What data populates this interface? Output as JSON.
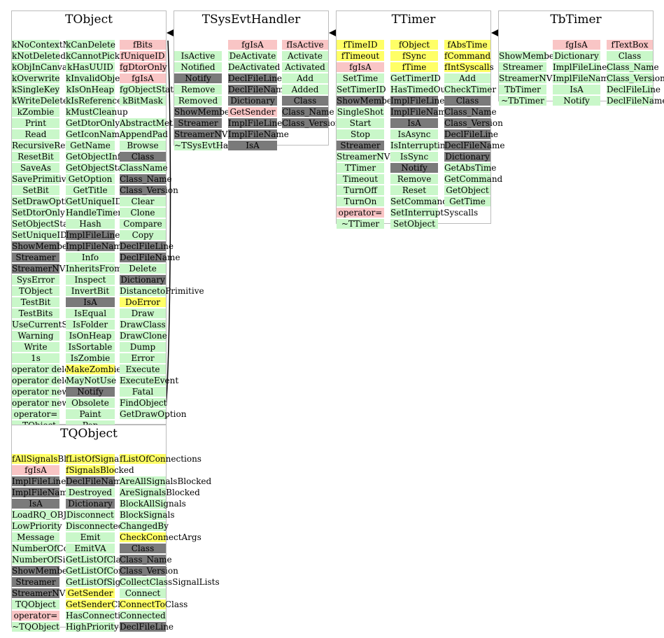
{
  "classes": [
    {
      "key": "TObject",
      "name": "TObject",
      "columns": [
        [
          [
            "kNoContextMenu",
            "m"
          ],
          [
            "kNotDeleted",
            "m"
          ],
          [
            "kObjInCanvas",
            "m"
          ],
          [
            "kOverwrite",
            "m"
          ],
          [
            "kSingleKey",
            "m"
          ],
          [
            "kWriteDelete",
            "m"
          ],
          [
            "kZombie",
            "m"
          ],
          [
            "Print",
            "m"
          ],
          [
            "Read",
            "m"
          ],
          [
            "RecursiveRemove",
            "m"
          ],
          [
            "ResetBit",
            "m"
          ],
          [
            "SaveAs",
            "m"
          ],
          [
            "SavePrimitive",
            "m"
          ],
          [
            "SetBit",
            "m"
          ],
          [
            "SetDrawOption",
            "m"
          ],
          [
            "SetDtorOnly",
            "m"
          ],
          [
            "SetObjectStat",
            "m"
          ],
          [
            "SetUniqueID",
            "m"
          ],
          [
            "ShowMembers",
            "d"
          ],
          [
            "Streamer",
            "d"
          ],
          [
            "StreamerNVirtual",
            "d"
          ],
          [
            "SysError",
            "m"
          ],
          [
            "TObject",
            "m"
          ],
          [
            "TestBit",
            "m"
          ],
          [
            "TestBits",
            "m"
          ],
          [
            "UseCurrentStyle",
            "m"
          ],
          [
            "Warning",
            "m"
          ],
          [
            "Write",
            "m"
          ],
          [
            "1s",
            "m"
          ],
          [
            "operator delete",
            "m"
          ],
          [
            "operator delete[]",
            "m"
          ],
          [
            "operator new",
            "m"
          ],
          [
            "operator new[]",
            "m"
          ],
          [
            "operator=",
            "m"
          ],
          [
            "~TObject",
            "m"
          ]
        ],
        [
          [
            "kCanDelete",
            "m"
          ],
          [
            "kCannotPick",
            "m"
          ],
          [
            "kHasUUID",
            "m"
          ],
          [
            "kInvalidObject",
            "m"
          ],
          [
            "kIsOnHeap",
            "m"
          ],
          [
            "kIsReferenced",
            "m"
          ],
          [
            "kMustCleanup",
            "m"
          ],
          [
            "GetDtorOnly",
            "m"
          ],
          [
            "GetIconName",
            "m"
          ],
          [
            "GetName",
            "m"
          ],
          [
            "GetObjectInfo",
            "m"
          ],
          [
            "GetObjectStat",
            "m"
          ],
          [
            "GetOption",
            "m"
          ],
          [
            "GetTitle",
            "m"
          ],
          [
            "GetUniqueID",
            "m"
          ],
          [
            "HandleTimer",
            "m"
          ],
          [
            "Hash",
            "m"
          ],
          [
            "ImplFileLine",
            "d"
          ],
          [
            "ImplFileName",
            "d"
          ],
          [
            "Info",
            "m"
          ],
          [
            "InheritsFrom",
            "m"
          ],
          [
            "Inspect",
            "m"
          ],
          [
            "InvertBit",
            "m"
          ],
          [
            "IsA",
            "d"
          ],
          [
            "IsEqual",
            "m"
          ],
          [
            "IsFolder",
            "m"
          ],
          [
            "IsOnHeap",
            "m"
          ],
          [
            "IsSortable",
            "m"
          ],
          [
            "IsZombie",
            "m"
          ],
          [
            "MakeZombie",
            "y"
          ],
          [
            "MayNotUse",
            "m"
          ],
          [
            "Notify",
            "d"
          ],
          [
            "Obsolete",
            "m"
          ],
          [
            "Paint",
            "m"
          ],
          [
            "Pop",
            "m"
          ]
        ],
        [
          [
            "fBits",
            "p"
          ],
          [
            "fUniqueID",
            "p"
          ],
          [
            "fgDtorOnly",
            "p"
          ],
          [
            "fgIsA",
            "p"
          ],
          [
            "fgObjectStat",
            "m"
          ],
          [
            "kBitMask",
            "m"
          ],
          [
            "",
            ""
          ],
          [
            "AbstractMethod",
            "m"
          ],
          [
            "AppendPad",
            "m"
          ],
          [
            "Browse",
            "m"
          ],
          [
            "Class",
            "d"
          ],
          [
            "ClassName",
            "m"
          ],
          [
            "Class_Name",
            "d"
          ],
          [
            "Class_Version",
            "d"
          ],
          [
            "Clear",
            "m"
          ],
          [
            "Clone",
            "m"
          ],
          [
            "Compare",
            "m"
          ],
          [
            "Copy",
            "m"
          ],
          [
            "DeclFileLine",
            "d"
          ],
          [
            "DeclFileName",
            "d"
          ],
          [
            "Delete",
            "m"
          ],
          [
            "Dictionary",
            "d"
          ],
          [
            "DistancetoPrimitive",
            "m"
          ],
          [
            "DoError",
            "y"
          ],
          [
            "Draw",
            "m"
          ],
          [
            "DrawClass",
            "m"
          ],
          [
            "DrawClone",
            "m"
          ],
          [
            "Dump",
            "m"
          ],
          [
            "Error",
            "m"
          ],
          [
            "Execute",
            "m"
          ],
          [
            "ExecuteEvent",
            "m"
          ],
          [
            "Fatal",
            "m"
          ],
          [
            "FindObject",
            "m"
          ],
          [
            "GetDrawOption",
            "m"
          ]
        ]
      ]
    },
    {
      "key": "TSysEvtHandler",
      "name": "TSysEvtHandler",
      "columns": [
        [
          [
            "",
            ""
          ],
          [
            "IsActive",
            "m"
          ],
          [
            "Notified",
            "m"
          ],
          [
            "Notify",
            "d"
          ],
          [
            "Remove",
            "m"
          ],
          [
            "Removed",
            "m"
          ],
          [
            "ShowMembers",
            "d"
          ],
          [
            "Streamer",
            "d"
          ],
          [
            "StreamerNVirtual",
            "d"
          ],
          [
            "~TSysEvtHandler",
            "m"
          ]
        ],
        [
          [
            "fgIsA",
            "p"
          ],
          [
            "DeActivate",
            "m"
          ],
          [
            "DeActivated",
            "m"
          ],
          [
            "DeclFileLine",
            "d"
          ],
          [
            "DeclFileName",
            "d"
          ],
          [
            "Dictionary",
            "d"
          ],
          [
            "GetSender",
            "p"
          ],
          [
            "ImplFileLine",
            "d"
          ],
          [
            "ImplFileName",
            "d"
          ],
          [
            "IsA",
            "d"
          ]
        ],
        [
          [
            "fIsActive",
            "p"
          ],
          [
            "Activate",
            "m"
          ],
          [
            "Activated",
            "m"
          ],
          [
            "Add",
            "m"
          ],
          [
            "Added",
            "m"
          ],
          [
            "Class",
            "d"
          ],
          [
            "Class_Name",
            "d"
          ],
          [
            "Class_Version",
            "d"
          ]
        ]
      ]
    },
    {
      "key": "TTimer",
      "name": "TTimer",
      "columns": [
        [
          [
            "fTimeID",
            "y"
          ],
          [
            "fTimeout",
            "y"
          ],
          [
            "fgIsA",
            "p"
          ],
          [
            "SetTime",
            "m"
          ],
          [
            "SetTimerID",
            "m"
          ],
          [
            "ShowMembers",
            "d"
          ],
          [
            "SingleShot",
            "m"
          ],
          [
            "Start",
            "m"
          ],
          [
            "Stop",
            "m"
          ],
          [
            "Streamer",
            "d"
          ],
          [
            "StreamerNVirtual",
            "m"
          ],
          [
            "TTimer",
            "m"
          ],
          [
            "Timeout",
            "m"
          ],
          [
            "TurnOff",
            "m"
          ],
          [
            "TurnOn",
            "m"
          ],
          [
            "operator=",
            "p"
          ],
          [
            "~TTimer",
            "m"
          ]
        ],
        [
          [
            "fObject",
            "y"
          ],
          [
            "fSync",
            "y"
          ],
          [
            "fTime",
            "y"
          ],
          [
            "GetTimerID",
            "m"
          ],
          [
            "HasTimedOut",
            "m"
          ],
          [
            "ImplFileLine",
            "d"
          ],
          [
            "ImplFileName",
            "d"
          ],
          [
            "IsA",
            "d"
          ],
          [
            "IsAsync",
            "m"
          ],
          [
            "IsInterruptingSyscalls",
            "m"
          ],
          [
            "IsSync",
            "m"
          ],
          [
            "Notify",
            "d"
          ],
          [
            "Remove",
            "m"
          ],
          [
            "Reset",
            "m"
          ],
          [
            "SetCommand",
            "m"
          ],
          [
            "SetInterruptSyscalls",
            "m"
          ],
          [
            "SetObject",
            "m"
          ]
        ],
        [
          [
            "fAbsTime",
            "y"
          ],
          [
            "fCommand",
            "y"
          ],
          [
            "fIntSyscalls",
            "y"
          ],
          [
            "Add",
            "m"
          ],
          [
            "CheckTimer",
            "m"
          ],
          [
            "Class",
            "d"
          ],
          [
            "Class_Name",
            "d"
          ],
          [
            "Class_Version",
            "d"
          ],
          [
            "DeclFileLine",
            "d"
          ],
          [
            "DeclFileName",
            "d"
          ],
          [
            "Dictionary",
            "d"
          ],
          [
            "GetAbsTime",
            "m"
          ],
          [
            "GetCommand",
            "m"
          ],
          [
            "GetObject",
            "m"
          ],
          [
            "GetTime",
            "m"
          ]
        ]
      ]
    },
    {
      "key": "TbTimer",
      "name": "TbTimer",
      "columns": [
        [
          [
            "",
            ""
          ],
          [
            "ShowMembers",
            "m"
          ],
          [
            "Streamer",
            "m"
          ],
          [
            "StreamerNVirtual",
            "m"
          ],
          [
            "TbTimer",
            "m"
          ],
          [
            "~TbTimer",
            "m"
          ]
        ],
        [
          [
            "fgIsA",
            "p"
          ],
          [
            "Dictionary",
            "m"
          ],
          [
            "ImplFileLine",
            "m"
          ],
          [
            "ImplFileName",
            "m"
          ],
          [
            "IsA",
            "m"
          ],
          [
            "Notify",
            "m"
          ]
        ],
        [
          [
            "fTextBox",
            "p"
          ],
          [
            "Class",
            "m"
          ],
          [
            "Class_Name",
            "m"
          ],
          [
            "Class_Version",
            "m"
          ],
          [
            "DeclFileLine",
            "m"
          ],
          [
            "DeclFileName",
            "m"
          ]
        ]
      ]
    },
    {
      "key": "TQObject",
      "name": "TQObject",
      "columns": [
        [
          [
            "fAllSignalsBlocked",
            "y"
          ],
          [
            "fgIsA",
            "p"
          ],
          [
            "ImplFileLine",
            "d"
          ],
          [
            "ImplFileName",
            "d"
          ],
          [
            "IsA",
            "d"
          ],
          [
            "LoadRQ_OBJECT",
            "m"
          ],
          [
            "LowPriority",
            "m"
          ],
          [
            "Message",
            "m"
          ],
          [
            "NumberOfConnections",
            "m"
          ],
          [
            "NumberOfSignals",
            "m"
          ],
          [
            "ShowMembers",
            "d"
          ],
          [
            "Streamer",
            "d"
          ],
          [
            "StreamerNVirtual",
            "d"
          ],
          [
            "TQObject",
            "m"
          ],
          [
            "operator=",
            "p"
          ],
          [
            "~TQObject",
            "m"
          ]
        ],
        [
          [
            "fListOfSignals",
            "y"
          ],
          [
            "fSignalsBlocked",
            "y"
          ],
          [
            "DeclFileName",
            "d"
          ],
          [
            "Destroyed",
            "m"
          ],
          [
            "Dictionary",
            "d"
          ],
          [
            "Disconnect",
            "m"
          ],
          [
            "Disconnected",
            "m"
          ],
          [
            "Emit",
            "m"
          ],
          [
            "EmitVA",
            "m"
          ],
          [
            "GetListOfClassSignals",
            "m"
          ],
          [
            "GetListOfConnections",
            "m"
          ],
          [
            "GetListOfSignals",
            "m"
          ],
          [
            "GetSender",
            "y"
          ],
          [
            "GetSenderClassName",
            "y"
          ],
          [
            "HasConnection",
            "m"
          ],
          [
            "HighPriority",
            "m"
          ]
        ],
        [
          [
            "fListOfConnections",
            "y"
          ],
          [
            "",
            ""
          ],
          [
            "AreAllSignalsBlocked",
            "m"
          ],
          [
            "AreSignalsBlocked",
            "m"
          ],
          [
            "BlockAllSignals",
            "m"
          ],
          [
            "BlockSignals",
            "m"
          ],
          [
            "ChangedBy",
            "m"
          ],
          [
            "CheckConnectArgs",
            "y"
          ],
          [
            "Class",
            "d"
          ],
          [
            "Class_Name",
            "d"
          ],
          [
            "Class_Version",
            "d"
          ],
          [
            "CollectClassSignalLists",
            "m"
          ],
          [
            "Connect",
            "m"
          ],
          [
            "ConnectToClass",
            "y"
          ],
          [
            "Connected",
            "m"
          ],
          [
            "DeclFileLine",
            "d"
          ]
        ]
      ]
    }
  ],
  "edges": [
    {
      "from": "TSysEvtHandler",
      "to": "TObject",
      "kind": "inherits"
    },
    {
      "from": "TTimer",
      "to": "TSysEvtHandler",
      "kind": "inherits"
    },
    {
      "from": "TbTimer",
      "to": "TTimer",
      "kind": "inherits"
    },
    {
      "from": "TObject",
      "to": "TQObject",
      "kind": "relation"
    }
  ]
}
